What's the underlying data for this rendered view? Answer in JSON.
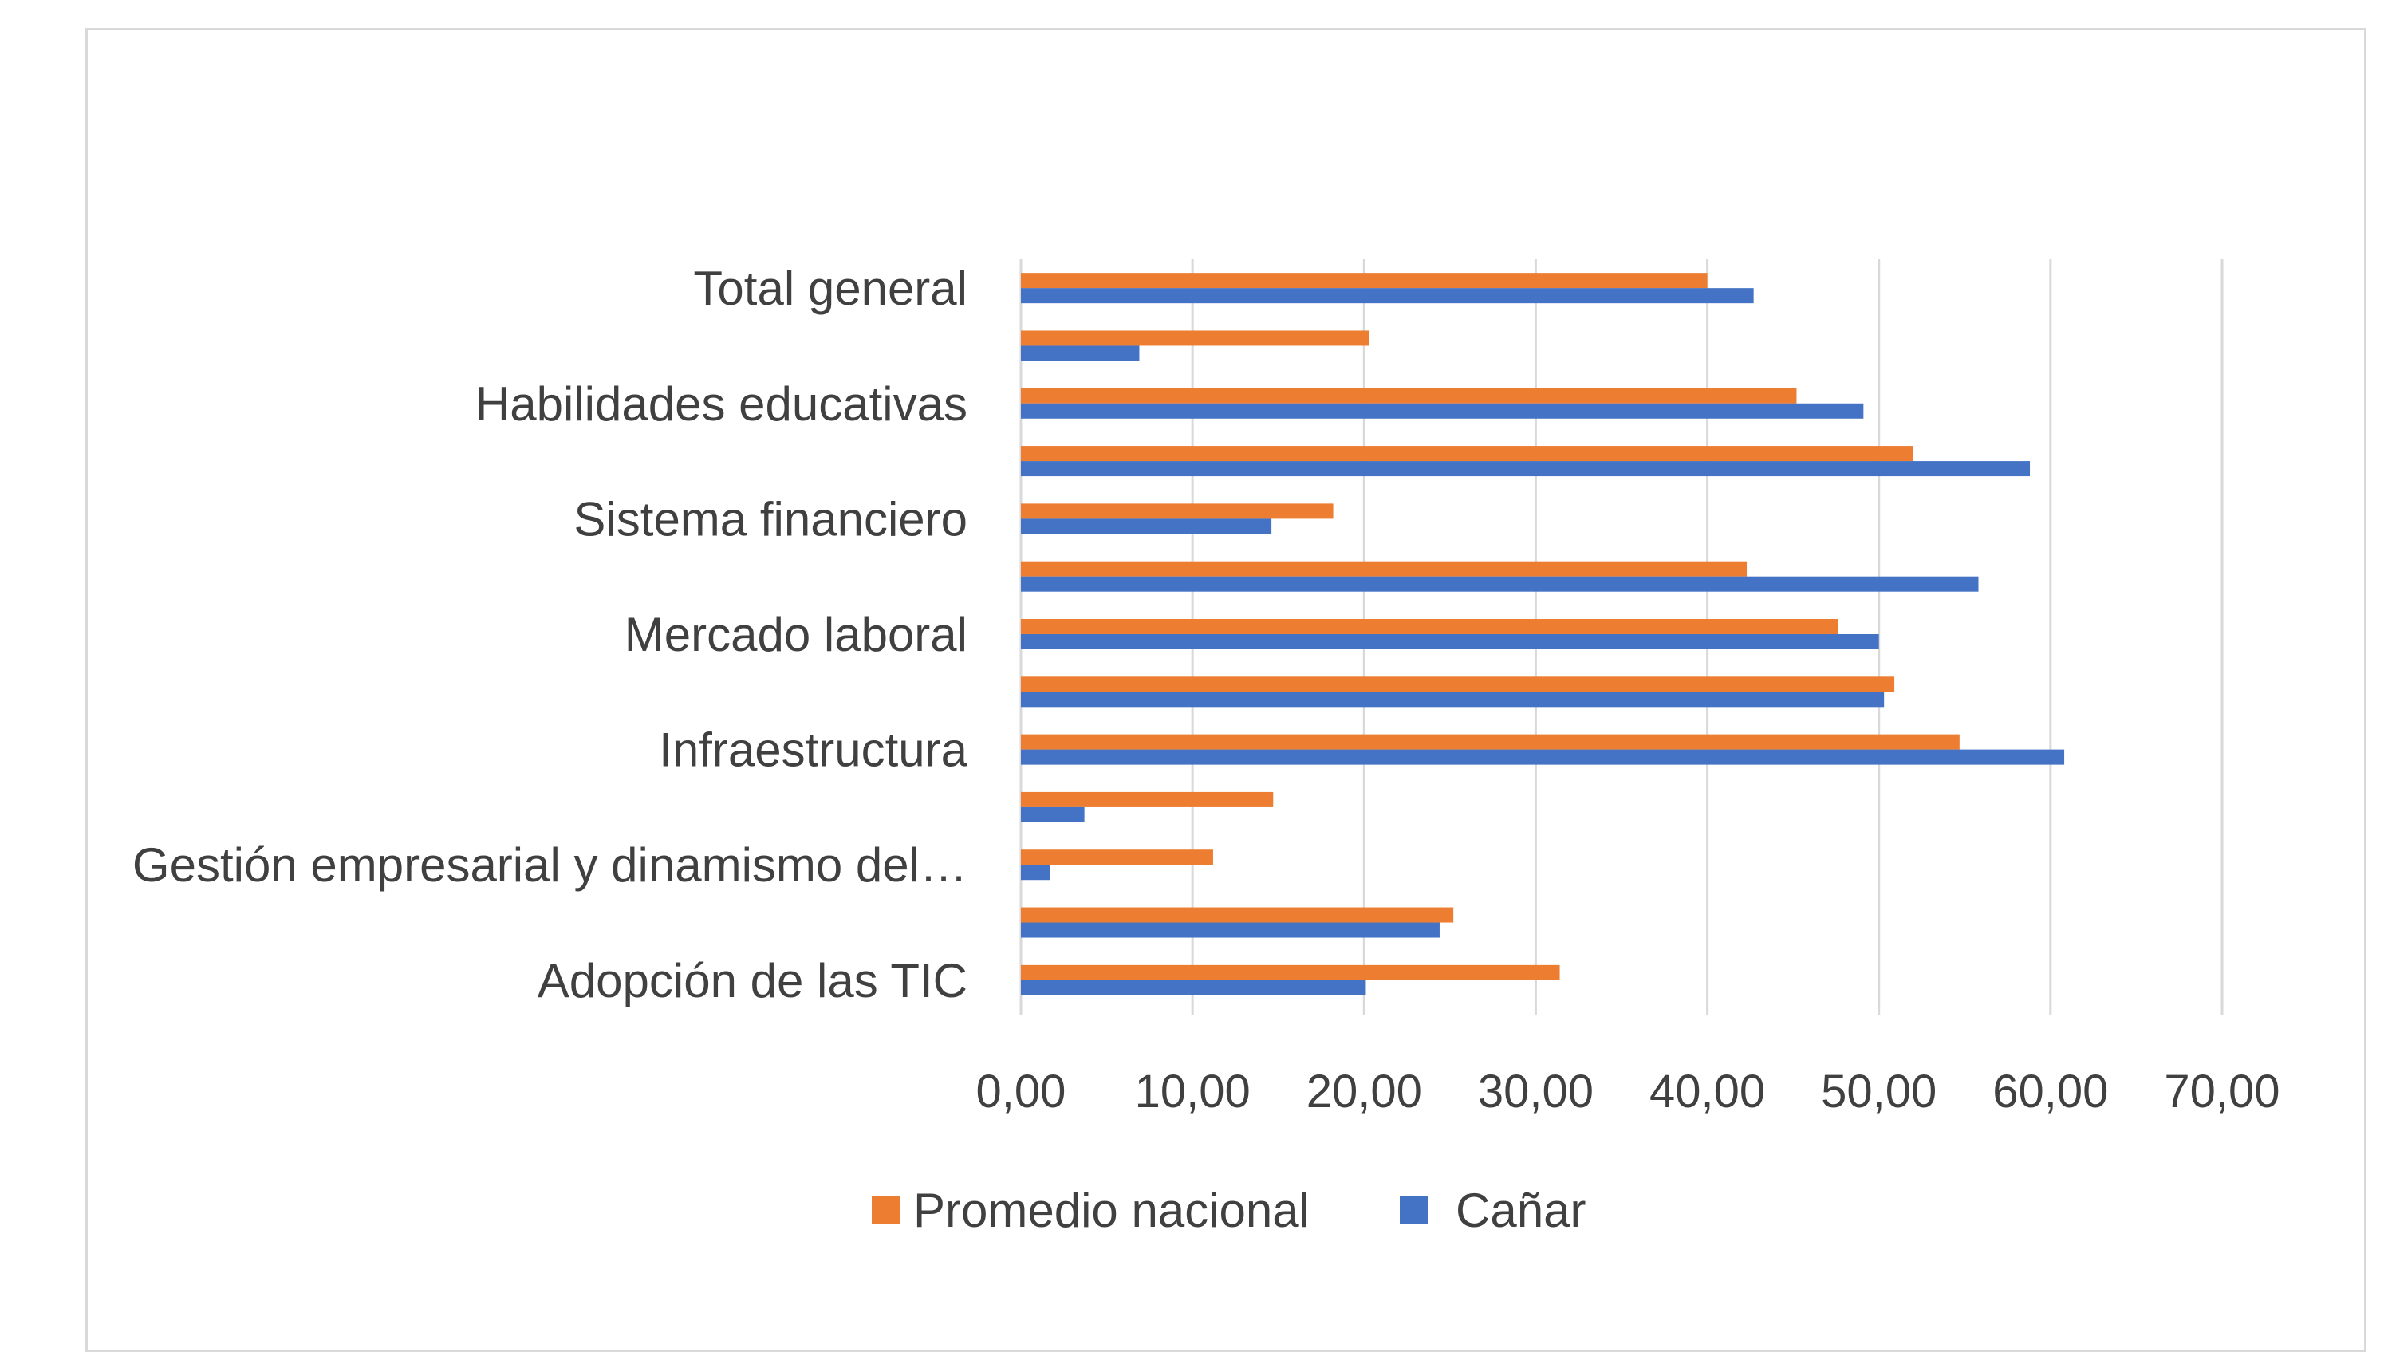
{
  "chart_data": {
    "type": "bar",
    "orientation": "horizontal",
    "categories": [
      "Adopción de las TIC",
      "",
      "Gestión empresarial y dinamismo del…",
      "",
      "Infraestructura",
      "",
      "Mercado laboral",
      "",
      "Sistema financiero",
      "",
      "Habilidades educativas",
      "",
      "Total general"
    ],
    "series": [
      {
        "name": "Promedio nacional",
        "color": "#ed7d31",
        "values": [
          31.4,
          25.2,
          11.2,
          14.7,
          54.7,
          50.9,
          47.6,
          42.3,
          18.2,
          52.0,
          45.2,
          20.3,
          40.0
        ]
      },
      {
        "name": "Cañar",
        "color": "#4472c4",
        "values": [
          20.1,
          24.4,
          1.7,
          3.7,
          60.8,
          50.3,
          50.0,
          55.8,
          14.6,
          58.8,
          49.1,
          6.9,
          42.7
        ]
      }
    ],
    "x_ticks": [
      "0,00",
      "10,00",
      "20,00",
      "30,00",
      "40,00",
      "50,00",
      "60,00",
      "70,00"
    ],
    "xlim": [
      0,
      70
    ],
    "grid": "vertical",
    "legend_position": "bottom"
  }
}
